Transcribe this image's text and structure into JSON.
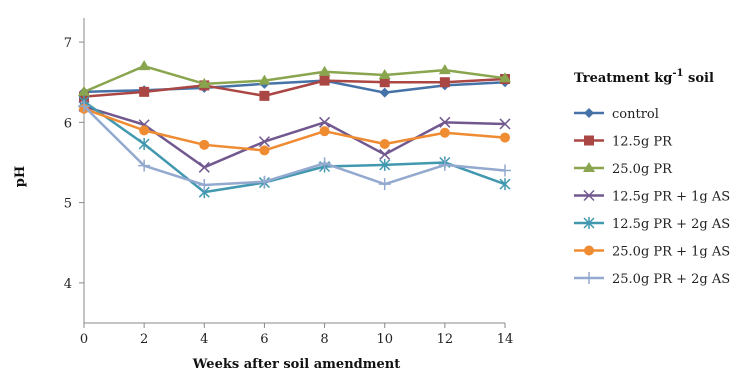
{
  "chart_data": {
    "type": "line",
    "xlabel": "Weeks after soil amendment",
    "ylabel": "pH",
    "x": [
      0,
      2,
      4,
      6,
      8,
      10,
      12,
      14
    ],
    "xlim": [
      0,
      14
    ],
    "ylim": [
      3.5,
      7.3
    ],
    "yticks": [
      4,
      5,
      6,
      7
    ],
    "legend": {
      "title": "Treatment kg",
      "title_sup": "-1",
      "title_tail": " soil",
      "position": "right"
    },
    "grid": false,
    "series": [
      {
        "name": "control",
        "color": "#4572a7",
        "marker": "diamond",
        "values": [
          6.38,
          6.4,
          6.43,
          6.48,
          6.52,
          6.37,
          6.46,
          6.5
        ]
      },
      {
        "name": "12.5g PR",
        "color": "#aa4643",
        "marker": "square",
        "values": [
          6.32,
          6.38,
          6.46,
          6.33,
          6.52,
          6.5,
          6.5,
          6.54
        ]
      },
      {
        "name": "25.0g PR",
        "color": "#89a54e",
        "marker": "triangle",
        "values": [
          6.38,
          6.7,
          6.48,
          6.52,
          6.63,
          6.59,
          6.65,
          6.55
        ]
      },
      {
        "name": "12.5g PR + 1g AS",
        "color": "#71588f",
        "marker": "x",
        "values": [
          6.2,
          5.97,
          5.44,
          5.76,
          6.0,
          5.6,
          6.0,
          5.98
        ]
      },
      {
        "name": "12.5g PR + 2g AS",
        "color": "#4198af",
        "marker": "star",
        "values": [
          6.26,
          5.73,
          5.13,
          5.25,
          5.45,
          5.47,
          5.5,
          5.23
        ]
      },
      {
        "name": "25.0g PR + 1g AS",
        "color": "#ef8b31",
        "marker": "circle",
        "values": [
          6.17,
          5.9,
          5.72,
          5.65,
          5.89,
          5.73,
          5.87,
          5.81
        ]
      },
      {
        "name": "25.0g PR + 2g AS",
        "color": "#93a9cf",
        "marker": "plus",
        "values": [
          6.2,
          5.46,
          5.22,
          5.26,
          5.49,
          5.23,
          5.47,
          5.4
        ]
      }
    ]
  }
}
